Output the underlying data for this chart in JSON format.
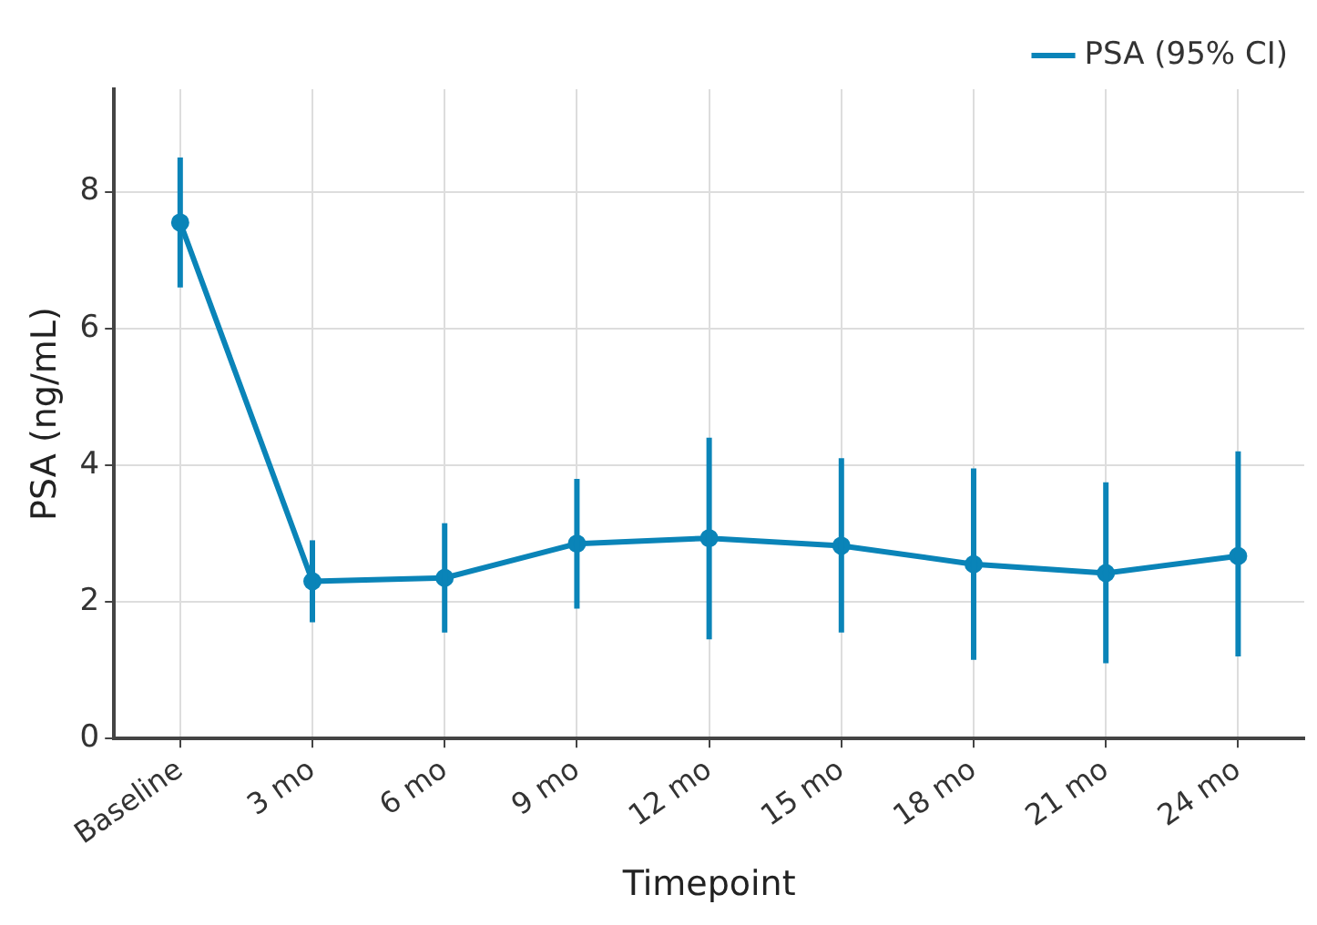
{
  "chart_data": {
    "type": "line",
    "xlabel": "Timepoint",
    "ylabel": "PSA (ng/mL)",
    "categories": [
      "Baseline",
      "3 mo",
      "6 mo",
      "9 mo",
      "12 mo",
      "15 mo",
      "18 mo",
      "21 mo",
      "24 mo"
    ],
    "series": [
      {
        "name": "PSA (95% CI)",
        "color": "#0a84b8",
        "values": [
          7.55,
          2.3,
          2.35,
          2.85,
          2.93,
          2.82,
          2.55,
          2.42,
          2.67
        ],
        "errors": [
          [
            6.6,
            8.5
          ],
          [
            1.7,
            2.9
          ],
          [
            1.55,
            3.15
          ],
          [
            1.9,
            3.8
          ],
          [
            1.45,
            4.4
          ],
          [
            1.55,
            4.1
          ],
          [
            1.15,
            3.95
          ],
          [
            1.1,
            3.75
          ],
          [
            1.2,
            4.2
          ]
        ]
      }
    ],
    "ylim": [
      0,
      9.5
    ],
    "yticks": [
      0,
      2,
      4,
      6,
      8
    ],
    "grid": true,
    "legend": "top right",
    "marker": "circle",
    "line_style": "solid"
  }
}
